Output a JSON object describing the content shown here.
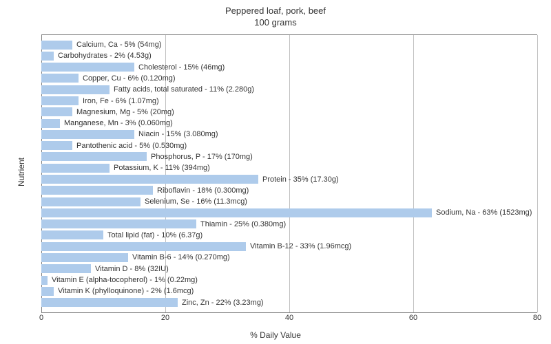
{
  "chart": {
    "type": "bar",
    "title_line1": "Peppered loaf, pork, beef",
    "title_line2": "100 grams",
    "title_fontsize": 13,
    "y_axis_label": "Nutrient",
    "x_axis_label": "% Daily Value",
    "label_fontsize": 12,
    "background_color": "#ffffff",
    "bar_color": "#aecbeb",
    "grid_color": "#c0c0c0",
    "axis_color": "#808080",
    "text_color": "#333333",
    "bar_label_fontsize": 11,
    "tick_fontsize": 11,
    "xlim": [
      0,
      80
    ],
    "xtick_step": 20,
    "xticks": [
      {
        "value": 0,
        "label": "0"
      },
      {
        "value": 20,
        "label": "20"
      },
      {
        "value": 40,
        "label": "40"
      },
      {
        "value": 60,
        "label": "60"
      },
      {
        "value": 80,
        "label": "80"
      }
    ],
    "items": [
      {
        "label": "Calcium, Ca - 5% (54mg)",
        "value": 5
      },
      {
        "label": "Carbohydrates - 2% (4.53g)",
        "value": 2
      },
      {
        "label": "Cholesterol - 15% (46mg)",
        "value": 15
      },
      {
        "label": "Copper, Cu - 6% (0.120mg)",
        "value": 6
      },
      {
        "label": "Fatty acids, total saturated - 11% (2.280g)",
        "value": 11
      },
      {
        "label": "Iron, Fe - 6% (1.07mg)",
        "value": 6
      },
      {
        "label": "Magnesium, Mg - 5% (20mg)",
        "value": 5
      },
      {
        "label": "Manganese, Mn - 3% (0.060mg)",
        "value": 3
      },
      {
        "label": "Niacin - 15% (3.080mg)",
        "value": 15
      },
      {
        "label": "Pantothenic acid - 5% (0.530mg)",
        "value": 5
      },
      {
        "label": "Phosphorus, P - 17% (170mg)",
        "value": 17
      },
      {
        "label": "Potassium, K - 11% (394mg)",
        "value": 11
      },
      {
        "label": "Protein - 35% (17.30g)",
        "value": 35
      },
      {
        "label": "Riboflavin - 18% (0.300mg)",
        "value": 18
      },
      {
        "label": "Selenium, Se - 16% (11.3mcg)",
        "value": 16
      },
      {
        "label": "Sodium, Na - 63% (1523mg)",
        "value": 63
      },
      {
        "label": "Thiamin - 25% (0.380mg)",
        "value": 25
      },
      {
        "label": "Total lipid (fat) - 10% (6.37g)",
        "value": 10
      },
      {
        "label": "Vitamin B-12 - 33% (1.96mcg)",
        "value": 33
      },
      {
        "label": "Vitamin B-6 - 14% (0.270mg)",
        "value": 14
      },
      {
        "label": "Vitamin D - 8% (32IU)",
        "value": 8
      },
      {
        "label": "Vitamin E (alpha-tocopherol) - 1% (0.22mg)",
        "value": 1
      },
      {
        "label": "Vitamin K (phylloquinone) - 2% (1.6mcg)",
        "value": 2
      },
      {
        "label": "Zinc, Zn - 22% (3.23mg)",
        "value": 22
      }
    ]
  }
}
